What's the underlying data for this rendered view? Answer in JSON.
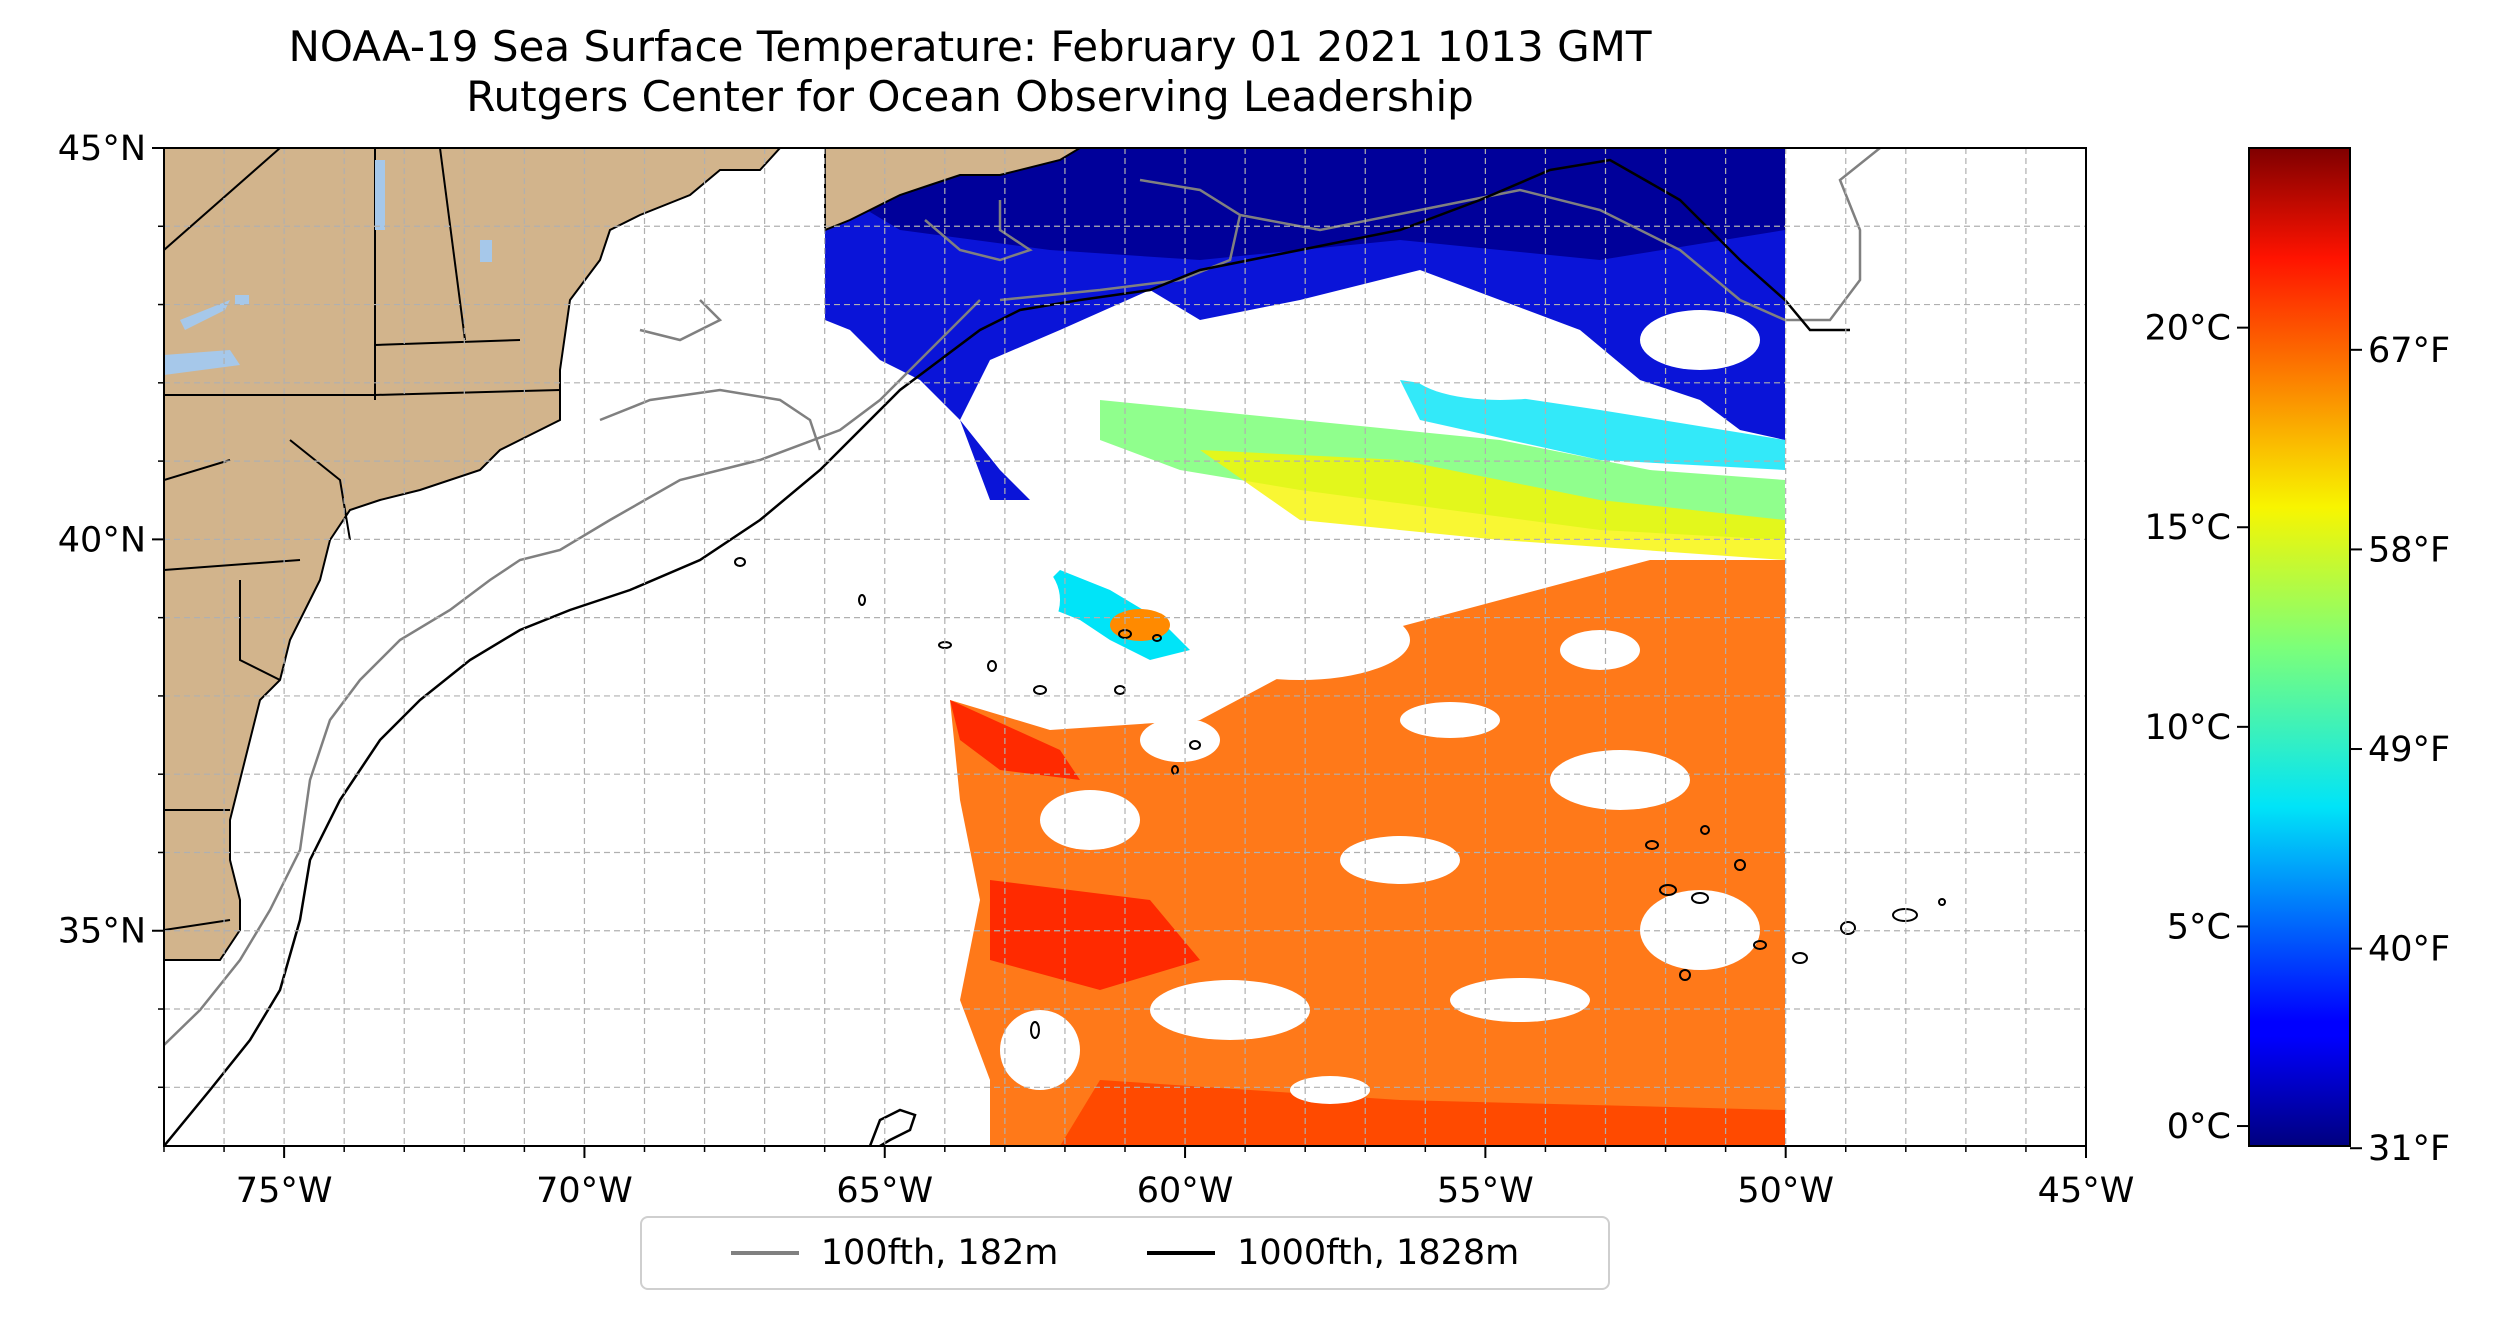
{
  "title": {
    "line1": "NOAA-19 Sea Surface Temperature: February 01 2021 1013 GMT",
    "line2": "Rutgers Center for Ocean Observing Leadership"
  },
  "map": {
    "lon_range": [
      -77,
      -45
    ],
    "lat_range": [
      32.25,
      45
    ],
    "lon_ticks": [
      "75°W",
      "70°W",
      "65°W",
      "60°W",
      "55°W",
      "50°W",
      "45°W"
    ],
    "lon_tick_values": [
      -75,
      -70,
      -65,
      -60,
      -55,
      -50,
      -45
    ],
    "lat_ticks": [
      "35°N",
      "40°N",
      "45°N"
    ],
    "lat_tick_values": [
      35,
      40,
      45
    ],
    "gridlines": true,
    "land_color": "#d2b48c",
    "lake_color": "#a6c8ea",
    "swath_lon_range": [
      -66,
      -50
    ]
  },
  "legend": {
    "items": [
      {
        "label": "100fth, 182m",
        "color": "#808080"
      },
      {
        "label": "1000fth, 1828m",
        "color": "#000000"
      }
    ],
    "placement": "bottom-center"
  },
  "colorbar": {
    "colormap": "jet",
    "range_celsius": [
      -0.5,
      24.5
    ],
    "celsius_ticks": [
      "0°C",
      "5°C",
      "10°C",
      "15°C",
      "20°C"
    ],
    "celsius_values": [
      0,
      5,
      10,
      15,
      20
    ],
    "fahrenheit_ticks": [
      "31°F",
      "40°F",
      "49°F",
      "58°F",
      "67°F"
    ],
    "fahrenheit_values": [
      31,
      40,
      49,
      58,
      67
    ]
  }
}
